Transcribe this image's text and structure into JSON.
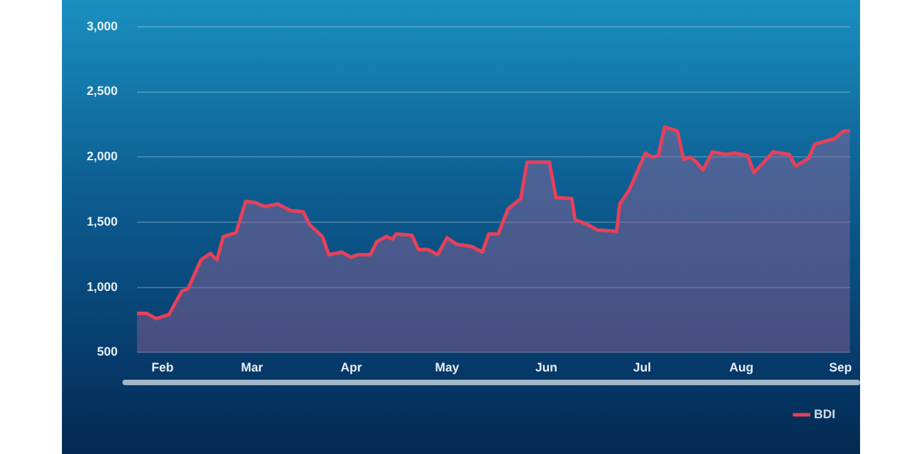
{
  "chart_data": {
    "type": "area",
    "x": [
      "--01-24",
      "--01-27",
      "--01-30",
      "--02-03",
      "--02-07",
      "--02-09",
      "--02-13",
      "--02-16",
      "--02-18",
      "--02-20",
      "--02-24",
      "--02-27",
      "--03-02",
      "--03-05",
      "--03-09",
      "--03-13",
      "--03-17",
      "--03-19",
      "--03-23",
      "--03-25",
      "--03-29",
      "--04-01",
      "--04-03",
      "--04-07",
      "--04-09",
      "--04-12",
      "--04-14",
      "--04-15",
      "--04-20",
      "--04-22",
      "--04-25",
      "--04-28",
      "--05-01",
      "--05-04",
      "--05-07",
      "--05-09",
      "--05-12",
      "--05-14",
      "--05-17",
      "--05-20",
      "--05-24",
      "--05-26",
      "--06-02",
      "--06-04",
      "--06-09",
      "--06-10",
      "--06-14",
      "--06-17",
      "--06-23",
      "--06-24",
      "--06-27",
      "--07-02",
      "--07-04",
      "--07-06",
      "--07-08",
      "--07-12",
      "--07-14",
      "--07-16",
      "--07-18",
      "--07-20",
      "--07-23",
      "--07-27",
      "--07-30",
      "--08-03",
      "--08-05",
      "--08-11",
      "--08-16",
      "--08-18",
      "--08-22",
      "--08-24",
      "--08-30",
      "--09-02",
      "--09-04"
    ],
    "series": [
      {
        "name": "BDI",
        "color": "#e8405a",
        "values": [
          800,
          800,
          760,
          790,
          970,
          990,
          1210,
          1260,
          1210,
          1390,
          1420,
          1660,
          1650,
          1620,
          1640,
          1590,
          1580,
          1480,
          1390,
          1250,
          1270,
          1230,
          1250,
          1250,
          1350,
          1390,
          1370,
          1410,
          1400,
          1290,
          1290,
          1250,
          1380,
          1330,
          1320,
          1310,
          1270,
          1410,
          1410,
          1600,
          1680,
          1960,
          1960,
          1690,
          1680,
          1520,
          1480,
          1440,
          1430,
          1640,
          1750,
          2030,
          2000,
          2010,
          2230,
          2200,
          1980,
          2000,
          1960,
          1900,
          2040,
          2020,
          2030,
          2010,
          1880,
          2040,
          2020,
          1930,
          1990,
          2100,
          2140,
          2200,
          2200
        ]
      }
    ],
    "xlim": [
      "--01-24",
      "--09-04"
    ],
    "xticks": [
      {
        "value": "--02-01",
        "label": "Feb"
      },
      {
        "value": "--03-01",
        "label": "Mar"
      },
      {
        "value": "--04-01",
        "label": "Apr"
      },
      {
        "value": "--05-01",
        "label": "May"
      },
      {
        "value": "--06-01",
        "label": "Jun"
      },
      {
        "value": "--07-01",
        "label": "Jul"
      },
      {
        "value": "--08-01",
        "label": "Aug"
      },
      {
        "value": "--09-01",
        "label": "Sep"
      }
    ],
    "ylim": [
      500,
      3000
    ],
    "yticks": [
      {
        "value": 500,
        "label": "500"
      },
      {
        "value": 1000,
        "label": "1,000"
      },
      {
        "value": 1500,
        "label": "1,500"
      },
      {
        "value": 2000,
        "label": "2,000"
      },
      {
        "value": 2500,
        "label": "2,500"
      },
      {
        "value": 3000,
        "label": "3,000"
      }
    ],
    "grid": "y",
    "legend": "bottom right",
    "marker": "none",
    "line_style": "solid"
  }
}
